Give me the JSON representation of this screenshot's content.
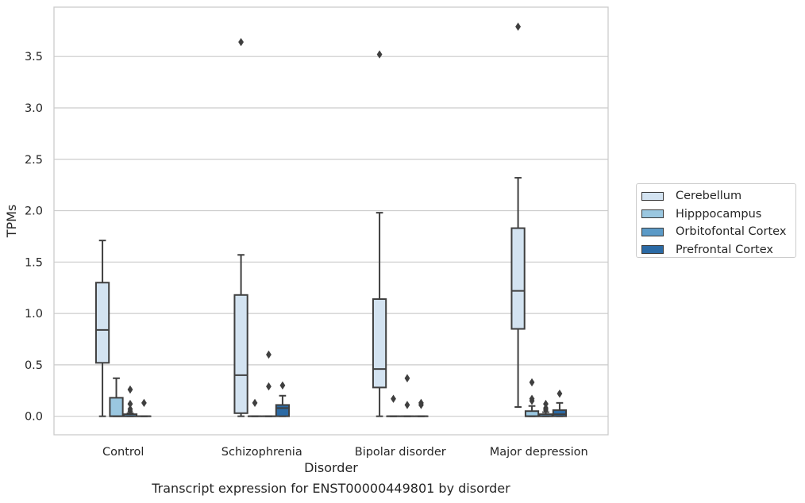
{
  "chart_data": {
    "type": "box",
    "title": "",
    "caption": "Transcript expression for ENST00000449801 by disorder",
    "xlabel": "Disorder",
    "ylabel": "TPMs",
    "ylim": [
      -0.18,
      3.98
    ],
    "yticks": [
      "0.0",
      "0.5",
      "1.0",
      "1.5",
      "2.0",
      "2.5",
      "3.0",
      "3.5"
    ],
    "grid": "horizontal",
    "legend_position": "right",
    "categories": [
      "Control",
      "Schizophrenia",
      "Bipolar disorder",
      "Major depression"
    ],
    "series": [
      {
        "name": "Cerebellum",
        "color": "#d3e3f1",
        "boxes": [
          {
            "whisker_low": 0.0,
            "q1": 0.52,
            "median": 0.84,
            "q3": 1.3,
            "whisker_high": 1.71,
            "outliers": []
          },
          {
            "whisker_low": 0.0,
            "q1": 0.03,
            "median": 0.4,
            "q3": 1.18,
            "whisker_high": 1.57,
            "outliers": [
              3.64
            ]
          },
          {
            "whisker_low": 0.0,
            "q1": 0.28,
            "median": 0.46,
            "q3": 1.14,
            "whisker_high": 1.98,
            "outliers": [
              3.52
            ]
          },
          {
            "whisker_low": 0.09,
            "q1": 0.85,
            "median": 1.22,
            "q3": 1.83,
            "whisker_high": 2.32,
            "outliers": [
              3.79
            ]
          }
        ]
      },
      {
        "name": "Hipppocampus",
        "color": "#9ac7e0",
        "boxes": [
          {
            "whisker_low": 0.0,
            "q1": 0.0,
            "median": 0.0,
            "q3": 0.18,
            "whisker_high": 0.37,
            "outliers": []
          },
          {
            "whisker_low": 0.0,
            "q1": 0.0,
            "median": 0.0,
            "q3": 0.0,
            "whisker_high": 0.0,
            "outliers": [
              0.13
            ]
          },
          {
            "whisker_low": 0.0,
            "q1": 0.0,
            "median": 0.0,
            "q3": 0.0,
            "whisker_high": 0.0,
            "outliers": [
              0.17
            ]
          },
          {
            "whisker_low": 0.0,
            "q1": 0.0,
            "median": 0.0,
            "q3": 0.05,
            "whisker_high": 0.1,
            "outliers": [
              0.33,
              0.17,
              0.15
            ]
          }
        ]
      },
      {
        "name": "Orbitofontal Cortex",
        "color": "#5b9ac7",
        "boxes": [
          {
            "whisker_low": 0.0,
            "q1": 0.0,
            "median": 0.0,
            "q3": 0.02,
            "whisker_high": 0.03,
            "outliers": [
              0.26,
              0.12,
              0.07,
              0.05
            ]
          },
          {
            "whisker_low": 0.0,
            "q1": 0.0,
            "median": 0.0,
            "q3": 0.0,
            "whisker_high": 0.0,
            "outliers": [
              0.6,
              0.29
            ]
          },
          {
            "whisker_low": 0.0,
            "q1": 0.0,
            "median": 0.0,
            "q3": 0.0,
            "whisker_high": 0.0,
            "outliers": [
              0.37,
              0.11
            ]
          },
          {
            "whisker_low": 0.0,
            "q1": 0.0,
            "median": 0.0,
            "q3": 0.02,
            "whisker_high": 0.04,
            "outliers": [
              0.12,
              0.08,
              0.06
            ]
          }
        ]
      },
      {
        "name": "Prefrontal Cortex",
        "color": "#2b6aa5",
        "boxes": [
          {
            "whisker_low": 0.0,
            "q1": 0.0,
            "median": 0.0,
            "q3": 0.0,
            "whisker_high": 0.0,
            "outliers": [
              0.13
            ]
          },
          {
            "whisker_low": 0.0,
            "q1": 0.0,
            "median": 0.08,
            "q3": 0.11,
            "whisker_high": 0.2,
            "outliers": [
              0.3
            ]
          },
          {
            "whisker_low": 0.0,
            "q1": 0.0,
            "median": 0.0,
            "q3": 0.0,
            "whisker_high": 0.0,
            "outliers": [
              0.13,
              0.11
            ]
          },
          {
            "whisker_low": 0.0,
            "q1": 0.0,
            "median": 0.02,
            "q3": 0.06,
            "whisker_high": 0.13,
            "outliers": [
              0.22
            ]
          }
        ]
      }
    ]
  }
}
